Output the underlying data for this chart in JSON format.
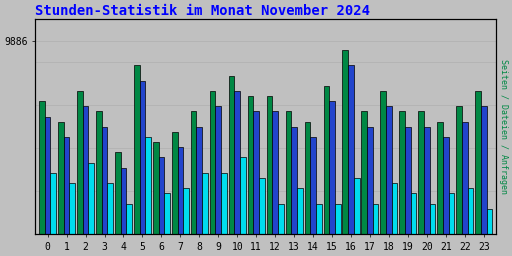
{
  "title": "Stunden-Statistik im Monat November 2024",
  "title_color": "#0000ff",
  "title_fontsize": 10,
  "ylabel_right": "Seiten / Dateien / Anfragen",
  "ytick_label": "9886",
  "background_color": "#c0c0c0",
  "plot_bg_color": "#c0c0c0",
  "bar_colors": [
    "#008844",
    "#2244cc",
    "#00ddee"
  ],
  "bar_width": 0.3,
  "hours": [
    0,
    1,
    2,
    3,
    4,
    5,
    6,
    7,
    8,
    9,
    10,
    11,
    12,
    13,
    14,
    15,
    16,
    17,
    18,
    19,
    20,
    21,
    22,
    23
  ],
  "seiten": [
    9300,
    9100,
    9400,
    9200,
    8800,
    9650,
    8900,
    9000,
    9200,
    9400,
    9550,
    9350,
    9350,
    9200,
    9100,
    9450,
    9800,
    9200,
    9400,
    9200,
    9200,
    9100,
    9250,
    9400
  ],
  "dateien": [
    9150,
    8950,
    9250,
    9050,
    8650,
    9500,
    8750,
    8850,
    9050,
    9250,
    9400,
    9200,
    9200,
    9050,
    8950,
    9300,
    9650,
    9050,
    9250,
    9050,
    9050,
    8950,
    9100,
    9250
  ],
  "anfragen": [
    8600,
    8500,
    8700,
    8500,
    8300,
    8950,
    8400,
    8450,
    8600,
    8600,
    8750,
    8550,
    8300,
    8450,
    8300,
    8300,
    8550,
    8300,
    8500,
    8400,
    8300,
    8400,
    8450,
    8250
  ],
  "ymin": 8000,
  "ymax": 10100,
  "ytick_val": 9886,
  "grid_color": "#b0b0b0",
  "border_color": "#000000",
  "figwidth": 5.12,
  "figheight": 2.56,
  "dpi": 100
}
